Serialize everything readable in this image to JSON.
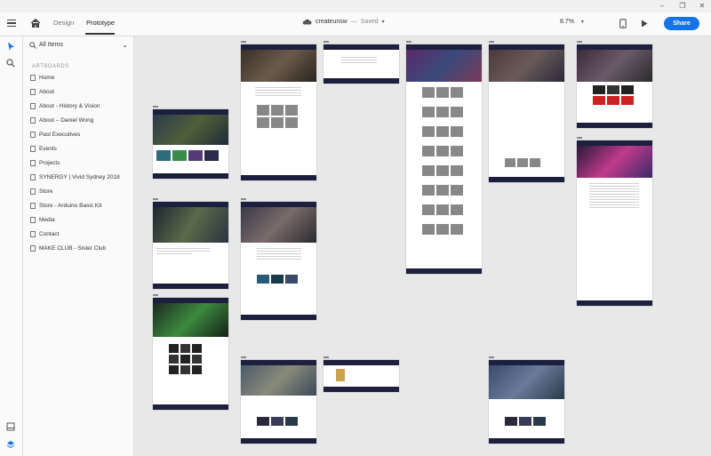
{
  "tabs": {
    "design": "Design",
    "prototype": "Prototype"
  },
  "document": {
    "name": "createunsw",
    "separator": "—",
    "status": "Saved"
  },
  "zoom": "8.7%",
  "share_label": "Share",
  "panel": {
    "filter": "All Items",
    "section": "ARTBOARDS",
    "artboards": [
      "Home",
      "About",
      "About - History & Vision",
      "About – Daniel Wong",
      "Past Executives",
      "Events",
      "Projects",
      "SYNERGY | Vivid Sydney 2018",
      "Store",
      "Store - Arduino Basic Kit",
      "Media",
      "Contact",
      "MAKE CLUB - Sister Club"
    ]
  },
  "icons": {
    "menu": "hamburger-icon",
    "home": "home-icon",
    "cloud": "cloud-icon",
    "select": "select-arrow-icon",
    "zoom": "zoom-icon",
    "device": "device-preview-icon",
    "play": "play-icon",
    "grid": "assets-icon",
    "layers": "layers-icon"
  },
  "colors": {
    "accent": "#1473e6",
    "nav": "#1d1f3f",
    "canvas": "#e8e8e8"
  }
}
